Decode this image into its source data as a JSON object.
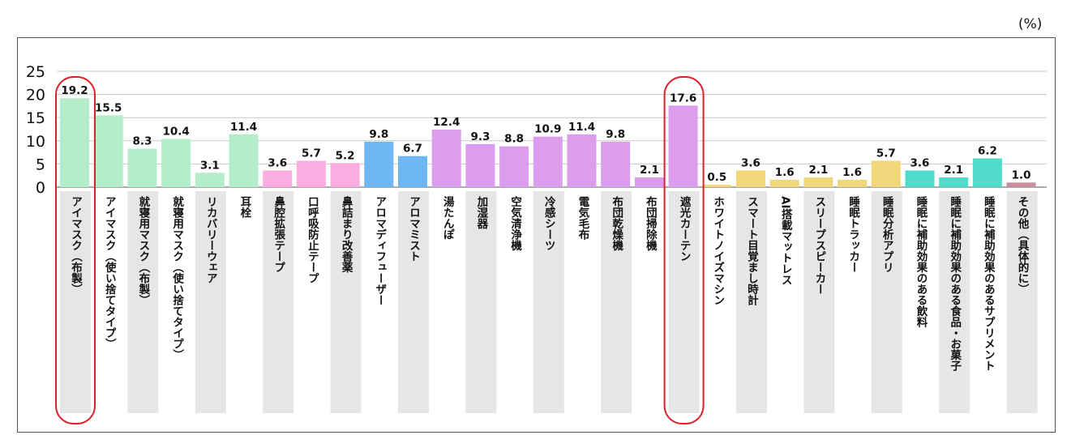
{
  "chart_data": {
    "type": "bar",
    "unit_label": "(%)",
    "title": "",
    "xlabel": "",
    "ylabel": "",
    "ylim": [
      0,
      25
    ],
    "yticks": [
      0,
      5,
      10,
      15,
      20,
      25
    ],
    "categories": [
      "アイマスク（布製）",
      "アイマスク（使い捨てタイプ）",
      "就寝用マスク（布製）",
      "就寝用マスク（使い捨てタイプ）",
      "リカバリーウェア",
      "耳栓",
      "鼻腔拡張テープ",
      "口呼吸防止テープ",
      "鼻詰まり改善薬",
      "アロマディフューザー",
      "アロマミスト",
      "湯たんぽ",
      "加湿器",
      "空気清浄機",
      "冷感シーツ",
      "電気毛布",
      "布団乾燥機",
      "布団掃除機",
      "遮光カーテン",
      "ホワイトノイズマシン",
      "スマート目覚まし時計",
      "AI搭載マットレス",
      "スリープスピーカー",
      "睡眠トラッカー",
      "睡眠分析アプリ",
      "睡眠に補助効果のある飲料",
      "睡眠に補助効果のある食品・お菓子",
      "睡眠に補助効果のあるサプリメント",
      "その他（具体的に）"
    ],
    "values": [
      19.2,
      15.5,
      8.3,
      10.4,
      3.1,
      11.4,
      3.6,
      5.7,
      5.2,
      9.8,
      6.7,
      12.4,
      9.3,
      8.8,
      10.9,
      11.4,
      9.8,
      2.1,
      17.6,
      0.5,
      3.6,
      1.6,
      2.1,
      1.6,
      5.7,
      3.6,
      2.1,
      6.2,
      1.0
    ],
    "value_labels": [
      "19.2",
      "15.5",
      "8.3",
      "10.4",
      "3.1",
      "11.4",
      "3.6",
      "5.7",
      "5.2",
      "9.8",
      "6.7",
      "12.4",
      "9.3",
      "8.8",
      "10.9",
      "11.4",
      "9.8",
      "2.1",
      "17.6",
      "0.5",
      "3.6",
      "1.6",
      "2.1",
      "1.6",
      "5.7",
      "3.6",
      "2.1",
      "6.2",
      "1.0"
    ],
    "colors": [
      "#b3edc9",
      "#b3edc9",
      "#b3edc9",
      "#b3edc9",
      "#b3edc9",
      "#b3edc9",
      "#fdaee0",
      "#fdaee0",
      "#fdaee0",
      "#6fb6f4",
      "#6fb6f4",
      "#dc9eec",
      "#dc9eec",
      "#dc9eec",
      "#dc9eec",
      "#dc9eec",
      "#dc9eec",
      "#dc9eec",
      "#dc9eec",
      "#f2d67a",
      "#f2d67a",
      "#f2d67a",
      "#f2d67a",
      "#f2d67a",
      "#f2d67a",
      "#4fdccb",
      "#4fdccb",
      "#4fdccb",
      "#c98f9f"
    ],
    "highlighted": [
      "アイマスク（布製）",
      "遮光カーテン"
    ],
    "highlight_color": "#e0202a",
    "grid": true,
    "legend": "none"
  }
}
